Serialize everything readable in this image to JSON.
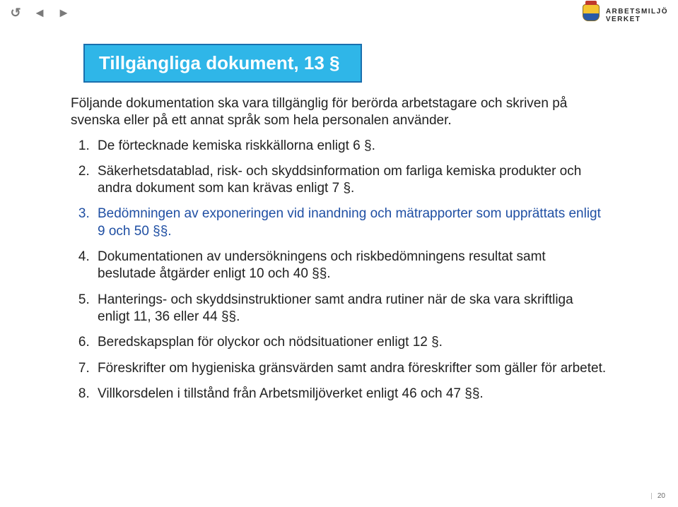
{
  "toolbar": {
    "refresh_icon": "↺",
    "prev_icon": "◄",
    "next_icon": "►"
  },
  "brand": {
    "line1": "ARBETSMILJÖ",
    "line2": "VERKET"
  },
  "title": "Tillgängliga dokument, 13 §",
  "intro": "Följande dokumentation ska vara tillgänglig för berörda arbetstagare och skriven på svenska eller på ett annat språk som hela personalen använder.",
  "items": [
    {
      "text": "De förtecknade kemiska riskkällorna enligt 6 §.",
      "blue": false
    },
    {
      "text": "Säkerhetsdatablad, risk- och skyddsinformation om farliga kemiska produkter och andra dokument som kan krävas enligt 7 §.",
      "blue": false
    },
    {
      "text": "Bedömningen av exponeringen vid inandning och mätrapporter som upprättats enligt 9 och 50 §§.",
      "blue": true
    },
    {
      "text": "Dokumentationen av undersökningens och riskbedömningens resultat samt beslutade åtgärder enligt 10 och 40 §§.",
      "blue": false
    },
    {
      "text": "Hanterings- och skyddsinstruktioner samt andra rutiner när de ska vara skriftliga enligt 11, 36 eller 44 §§.",
      "blue": false
    },
    {
      "text": "Beredskapsplan för olyckor och nödsituationer enligt 12 §.",
      "blue": false
    },
    {
      "text": "Föreskrifter om hygieniska gränsvärden samt andra föreskrifter som gäller för arbetet.",
      "blue": false
    },
    {
      "text": "Villkorsdelen i tillstånd från Arbetsmiljöverket enligt 46 och 47 §§.",
      "blue": false
    }
  ],
  "page_number": "20",
  "colors": {
    "title_bg": "#2fb6e8",
    "title_border": "#1a6fae",
    "title_text": "#ffffff",
    "body_text": "#222222",
    "blue_item": "#1f4fa3",
    "icon_gray": "#7a7a7a"
  },
  "typography": {
    "title_fontsize": 26,
    "body_fontsize": 19,
    "logo_fontsize": 10
  }
}
